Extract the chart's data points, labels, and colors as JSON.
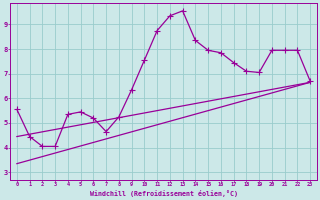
{
  "xlabel": "Windchill (Refroidissement éolien,°C)",
  "bg_color": "#cce8e8",
  "plot_bg_color": "#cce8e8",
  "line_color": "#990099",
  "grid_color": "#99cccc",
  "xlim": [
    -0.5,
    23.5
  ],
  "ylim": [
    2.7,
    9.85
  ],
  "xticks": [
    0,
    1,
    2,
    3,
    4,
    5,
    6,
    7,
    8,
    9,
    10,
    11,
    12,
    13,
    14,
    15,
    16,
    17,
    18,
    19,
    20,
    21,
    22,
    23
  ],
  "yticks": [
    3,
    4,
    5,
    6,
    7,
    8,
    9
  ],
  "curve_x": [
    0,
    1,
    2,
    3,
    4,
    5,
    6,
    7,
    8,
    9,
    10,
    11,
    12,
    13,
    14,
    15,
    16,
    17,
    18,
    19,
    20,
    21,
    22,
    23
  ],
  "curve_y": [
    5.55,
    4.45,
    4.05,
    4.05,
    5.35,
    5.45,
    5.2,
    4.65,
    5.25,
    6.35,
    7.55,
    8.75,
    9.35,
    9.55,
    8.35,
    7.95,
    7.85,
    7.45,
    7.1,
    7.05,
    7.95,
    7.95,
    7.95,
    6.7
  ],
  "line1_x": [
    0,
    23
  ],
  "line1_y": [
    3.35,
    6.65
  ],
  "line2_x": [
    0,
    23
  ],
  "line2_y": [
    4.45,
    6.65
  ],
  "lw": 0.9,
  "ms": 4.0,
  "mew": 0.8
}
